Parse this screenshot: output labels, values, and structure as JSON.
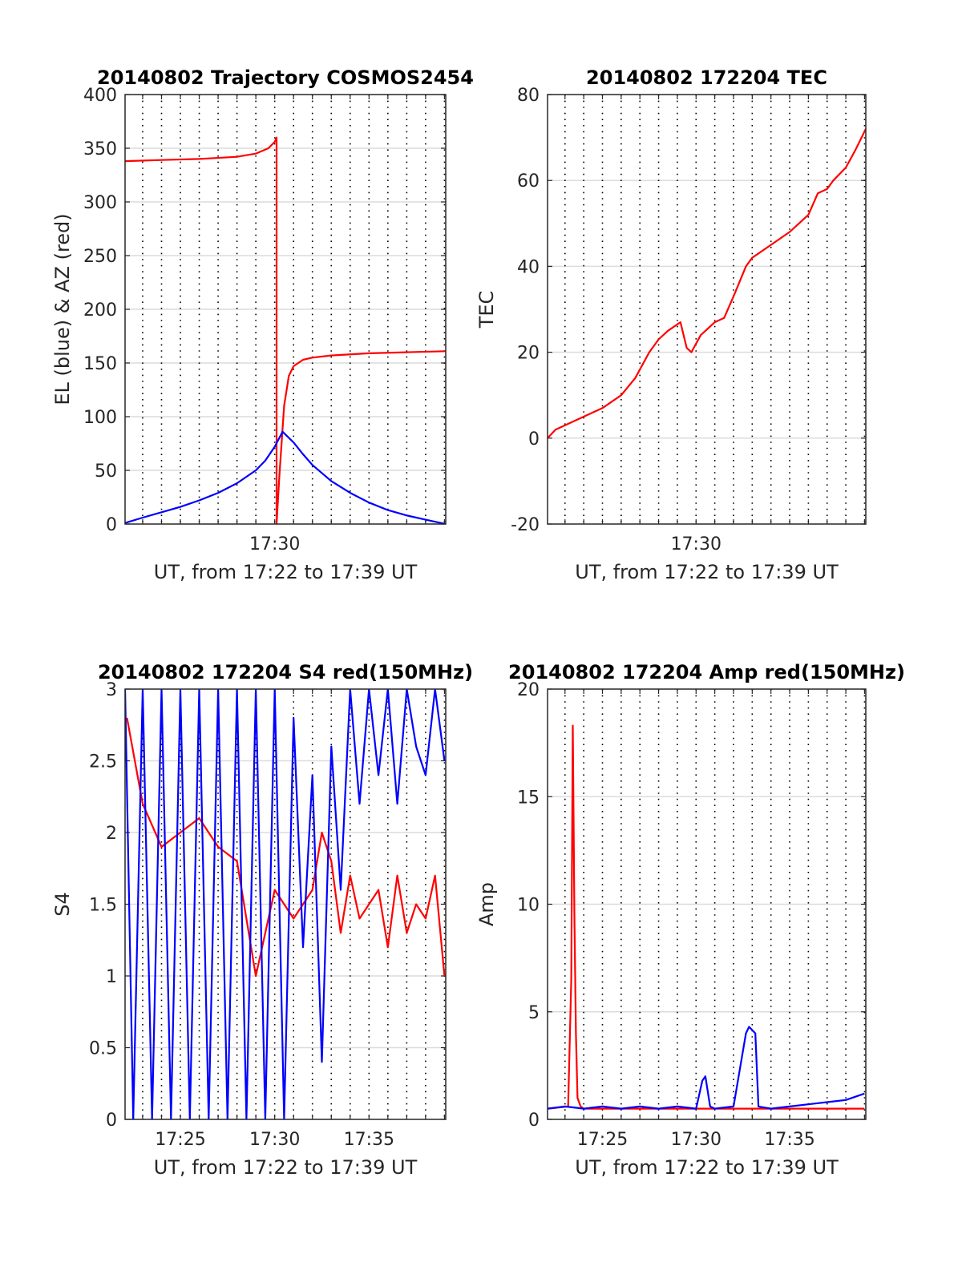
{
  "chart_data": [
    {
      "type": "line",
      "title": "20140802 Trajectory COSMOS2454",
      "xlabel": "UT, from 17:22 to 17:39 UT",
      "ylabel": "EL (blue) & AZ (red)",
      "xlim": [
        "17:22:04",
        "17:39:04"
      ],
      "ylim": [
        0,
        400
      ],
      "x_ticks": [
        "17:30"
      ],
      "y_ticks": [
        "0",
        "50",
        "100",
        "150",
        "200",
        "250",
        "300",
        "350",
        "400"
      ],
      "grid": true,
      "colors": {
        "AZ": "#ff0000",
        "EL": "#0000ff"
      },
      "series": [
        {
          "color": "#ff0000",
          "x": [
            "17:22:04",
            "17:24:00",
            "17:26:00",
            "17:28:00",
            "17:29:00",
            "17:29:40",
            "17:30:00",
            "17:30:06",
            "17:30:06",
            "17:30:15",
            "17:30:30",
            "17:30:45",
            "17:31:00",
            "17:31:30",
            "17:32:00",
            "17:33:00",
            "17:35:00",
            "17:37:00",
            "17:39:04"
          ],
          "values": [
            338,
            339,
            340,
            342,
            345,
            350,
            356,
            360,
            0,
            45,
            110,
            138,
            147,
            153,
            155,
            157,
            159,
            160,
            161
          ]
        },
        {
          "color": "#0000ff",
          "x": [
            "17:22:04",
            "17:23:00",
            "17:24:00",
            "17:25:00",
            "17:26:00",
            "17:27:00",
            "17:28:00",
            "17:29:00",
            "17:29:30",
            "17:30:00",
            "17:30:25",
            "17:31:00",
            "17:31:30",
            "17:32:00",
            "17:33:00",
            "17:34:00",
            "17:35:00",
            "17:36:00",
            "17:37:00",
            "17:38:00",
            "17:39:04"
          ],
          "values": [
            1,
            6,
            11,
            16,
            22,
            29,
            38,
            50,
            59,
            72,
            86,
            76,
            65,
            55,
            40,
            29,
            20,
            13,
            8,
            4,
            0
          ]
        }
      ]
    },
    {
      "type": "line",
      "title": "20140802 172204 TEC",
      "xlabel": "UT, from 17:22 to 17:39 UT",
      "ylabel": "TEC",
      "xlim": [
        "17:22:04",
        "17:39:04"
      ],
      "ylim": [
        -20,
        80
      ],
      "x_ticks": [
        "17:30"
      ],
      "y_ticks": [
        "-20",
        "0",
        "20",
        "40",
        "60",
        "80"
      ],
      "grid": true,
      "colors": {
        "TEC": "#ff0000"
      },
      "series": [
        {
          "color": "#ff0000",
          "x": [
            "17:22:04",
            "17:22:30",
            "17:23:00",
            "17:24:00",
            "17:25:00",
            "17:26:00",
            "17:26:45",
            "17:27:30",
            "17:28:00",
            "17:28:30",
            "17:29:10",
            "17:29:30",
            "17:29:45",
            "17:30:15",
            "17:31:00",
            "17:31:30",
            "17:32:00",
            "17:32:40",
            "17:33:00",
            "17:34:00",
            "17:35:00",
            "17:35:30",
            "17:36:00",
            "17:36:30",
            "17:37:00",
            "17:37:20",
            "17:38:00",
            "17:38:30",
            "17:39:04"
          ],
          "values": [
            0,
            2,
            3,
            5,
            7,
            10,
            14,
            20,
            23,
            25,
            27,
            21,
            20,
            24,
            27,
            28,
            33,
            40,
            42,
            45,
            48,
            50,
            52,
            57,
            58,
            60,
            63,
            67,
            72
          ]
        }
      ]
    },
    {
      "type": "line",
      "title": "20140802 172204 S4 red(150MHz)",
      "xlabel": "UT, from 17:22 to 17:39 UT",
      "ylabel": "S4",
      "xlim": [
        "17:22:04",
        "17:39:04"
      ],
      "ylim": [
        0,
        3
      ],
      "x_ticks": [
        "17:25",
        "17:30",
        "17:35"
      ],
      "y_ticks": [
        "0",
        "0.5",
        "1",
        "1.5",
        "2",
        "2.5",
        "3"
      ],
      "grid": true,
      "colors": {
        "red": "#ff0000",
        "blue": "#0000ff"
      },
      "series": [
        {
          "color": "#ff0000",
          "x": [
            "17:22:10",
            "17:23:00",
            "17:24:00",
            "17:25:00",
            "17:26:00",
            "17:27:00",
            "17:28:00",
            "17:29:00",
            "17:30:00",
            "17:31:00",
            "17:32:00",
            "17:32:30",
            "17:33:00",
            "17:33:30",
            "17:34:00",
            "17:34:30",
            "17:35:00",
            "17:35:30",
            "17:36:00",
            "17:36:30",
            "17:37:00",
            "17:37:30",
            "17:38:00",
            "17:38:30",
            "17:39:00"
          ],
          "values": [
            2.8,
            2.2,
            1.9,
            2.0,
            2.1,
            1.9,
            1.8,
            1.0,
            1.6,
            1.4,
            1.6,
            2.0,
            1.8,
            1.3,
            1.7,
            1.4,
            1.5,
            1.6,
            1.2,
            1.7,
            1.3,
            1.5,
            1.4,
            1.7,
            1.0
          ]
        },
        {
          "color": "#0000ff",
          "x": [
            "17:22:04",
            "17:22:30",
            "17:23:00",
            "17:23:30",
            "17:24:00",
            "17:24:30",
            "17:25:00",
            "17:25:30",
            "17:26:00",
            "17:26:30",
            "17:27:00",
            "17:27:30",
            "17:28:00",
            "17:28:30",
            "17:29:00",
            "17:29:30",
            "17:30:00",
            "17:30:30",
            "17:31:00",
            "17:31:30",
            "17:32:00",
            "17:32:30",
            "17:33:00",
            "17:33:30",
            "17:34:00",
            "17:34:30",
            "17:35:00",
            "17:35:30",
            "17:36:00",
            "17:36:30",
            "17:37:00",
            "17:37:30",
            "17:38:00",
            "17:38:30",
            "17:39:00"
          ],
          "values": [
            3.0,
            0.0,
            3.0,
            0.0,
            3.0,
            0.0,
            3.0,
            0.0,
            3.0,
            0.0,
            3.0,
            0.0,
            3.0,
            0.0,
            3.0,
            0.0,
            3.0,
            0.0,
            2.8,
            1.2,
            2.4,
            0.4,
            2.6,
            1.6,
            3.0,
            2.2,
            3.0,
            2.4,
            3.0,
            2.2,
            3.0,
            2.6,
            2.4,
            3.0,
            2.5
          ]
        }
      ]
    },
    {
      "type": "line",
      "title": "20140802 172204 Amp red(150MHz)",
      "xlabel": "UT, from 17:22 to 17:39 UT",
      "ylabel": "Amp",
      "xlim": [
        "17:22:04",
        "17:39:04"
      ],
      "ylim": [
        0,
        20
      ],
      "x_ticks": [
        "17:25",
        "17:30",
        "17:35"
      ],
      "y_ticks": [
        "0",
        "5",
        "10",
        "15",
        "20"
      ],
      "grid": true,
      "colors": {
        "red": "#ff0000",
        "blue": "#0000ff"
      },
      "series": [
        {
          "color": "#ff0000",
          "x": [
            "17:22:04",
            "17:23:10",
            "17:23:20",
            "17:23:25",
            "17:23:30",
            "17:23:35",
            "17:23:40",
            "17:23:50",
            "17:24:00",
            "17:39:00"
          ],
          "values": [
            0.5,
            0.6,
            6.5,
            18.3,
            9.5,
            4.0,
            1.0,
            0.6,
            0.5,
            0.5
          ]
        },
        {
          "color": "#0000ff",
          "x": [
            "17:22:04",
            "17:23:00",
            "17:24:00",
            "17:25:00",
            "17:26:00",
            "17:27:00",
            "17:28:00",
            "17:29:00",
            "17:30:00",
            "17:30:20",
            "17:30:30",
            "17:30:45",
            "17:31:00",
            "17:32:00",
            "17:32:40",
            "17:32:50",
            "17:33:10",
            "17:33:20",
            "17:34:00",
            "17:35:00",
            "17:36:00",
            "17:37:00",
            "17:38:00",
            "17:39:00"
          ],
          "values": [
            0.5,
            0.6,
            0.5,
            0.6,
            0.5,
            0.6,
            0.5,
            0.6,
            0.5,
            1.8,
            2.0,
            0.6,
            0.5,
            0.6,
            4.0,
            4.3,
            4.0,
            0.6,
            0.5,
            0.6,
            0.7,
            0.8,
            0.9,
            1.2
          ]
        }
      ]
    }
  ]
}
